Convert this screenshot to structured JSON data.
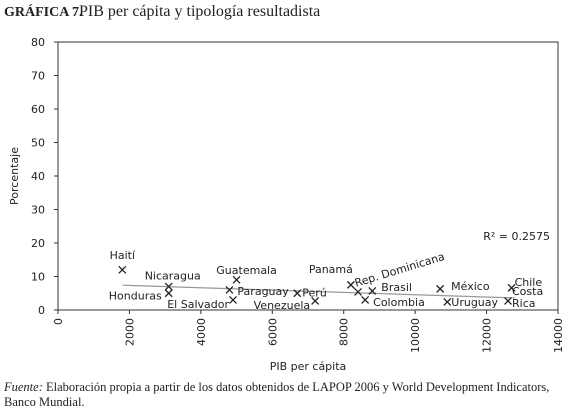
{
  "chart_data": {
    "type": "scatter",
    "title_label": "GRÁFICA 7.",
    "title": "PIB per cápita y tipología resultadista",
    "x_label": "PIB per cápita",
    "y_label": "Porcentaje",
    "annotation": "R² = 0.2575",
    "xlim": [
      0,
      14000
    ],
    "xticks": [
      0,
      2000,
      4000,
      6000,
      8000,
      10000,
      12000,
      14000
    ],
    "ylim": [
      0,
      80
    ],
    "yticks": [
      0,
      10,
      20,
      30,
      40,
      50,
      60,
      70,
      80
    ],
    "color": "#222222",
    "trend_color": "#999999",
    "points": [
      {
        "label": "Haití",
        "x": 1800,
        "y": 12
      },
      {
        "label": "Nicaragua",
        "x": 3100,
        "y": 7
      },
      {
        "label": "Honduras",
        "x": 3100,
        "y": 5
      },
      {
        "label": "Guatemala",
        "x": 5000,
        "y": 9
      },
      {
        "label": "Paraguay",
        "x": 4800,
        "y": 6
      },
      {
        "label": "El Salvador",
        "x": 4900,
        "y": 3
      },
      {
        "label": "Perú",
        "x": 6700,
        "y": 5
      },
      {
        "label": "Venezuela",
        "x": 7200,
        "y": 2.7
      },
      {
        "label": "Panamá",
        "x": 8200,
        "y": 7.5
      },
      {
        "label": "Rep. Dominicana",
        "x": 8400,
        "y": 5.4
      },
      {
        "label": "Brasil",
        "x": 8800,
        "y": 5.7
      },
      {
        "label": "Colombia",
        "x": 8600,
        "y": 3
      },
      {
        "label": "México",
        "x": 10700,
        "y": 6.3
      },
      {
        "label": "Uruguay",
        "x": 10900,
        "y": 2.4
      },
      {
        "label": "Chile",
        "x": 12700,
        "y": 6.6
      },
      {
        "label": "Costa Rica",
        "x": 12600,
        "y": 2.7
      }
    ],
    "trendline": {
      "x": [
        1800,
        12800
      ],
      "y": [
        7.4,
        3.6
      ]
    },
    "source_label": "Fuente:",
    "source": "Elaboración propia a partir de los datos obtenidos de LAPOP 2006 y World Development Indicators, Banco Mundial."
  }
}
